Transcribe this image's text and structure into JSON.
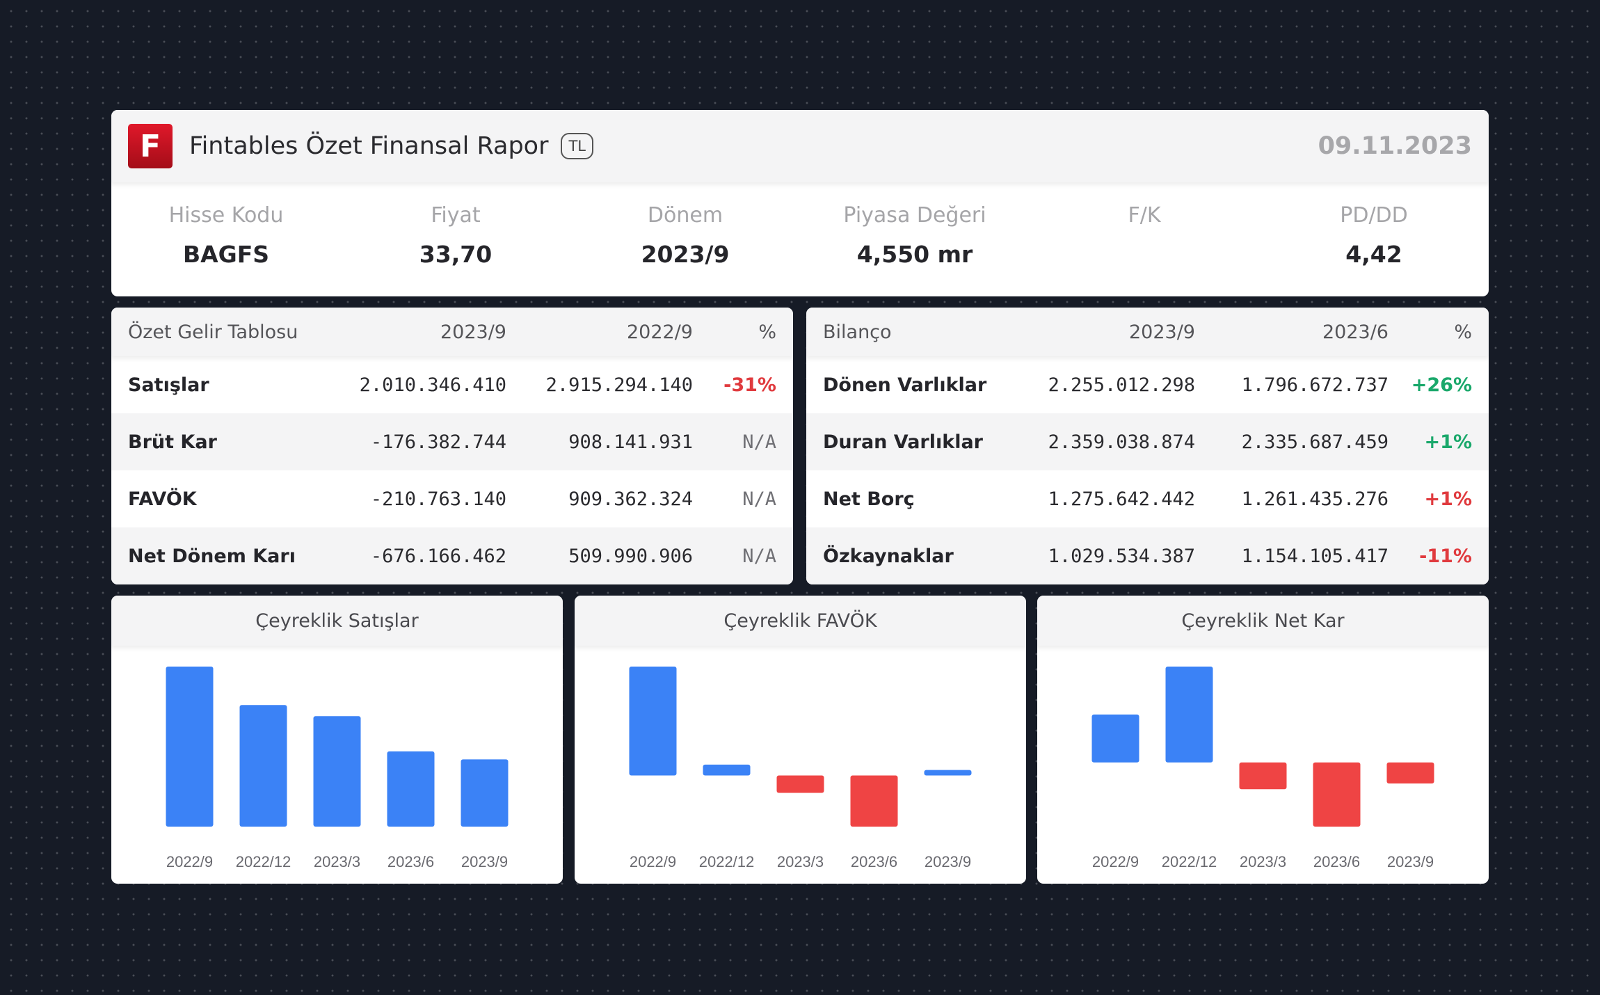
{
  "header": {
    "logo_letter": "F",
    "title": "Fintables Özet Finansal Rapor",
    "currency": "TL",
    "date": "09.11.2023"
  },
  "stats": [
    {
      "label": "Hisse Kodu",
      "value": "BAGFS"
    },
    {
      "label": "Fiyat",
      "value": "33,70"
    },
    {
      "label": "Dönem",
      "value": "2023/9"
    },
    {
      "label": "Piyasa Değeri",
      "value": "4,550 mr"
    },
    {
      "label": "F/K",
      "value": ""
    },
    {
      "label": "PD/DD",
      "value": "4,42"
    }
  ],
  "income": {
    "headers": [
      "Özet Gelir Tablosu",
      "2023/9",
      "2022/9",
      "%"
    ],
    "rows": [
      {
        "name": "Satışlar",
        "a": "2.010.346.410",
        "b": "2.915.294.140",
        "pct": "-31%",
        "tone": "neg"
      },
      {
        "name": "Brüt Kar",
        "a": "-176.382.744",
        "b": "908.141.931",
        "pct": "N/A",
        "tone": "na"
      },
      {
        "name": "FAVÖK",
        "a": "-210.763.140",
        "b": "909.362.324",
        "pct": "N/A",
        "tone": "na"
      },
      {
        "name": "Net Dönem Karı",
        "a": "-676.166.462",
        "b": "509.990.906",
        "pct": "N/A",
        "tone": "na"
      }
    ]
  },
  "balance": {
    "headers": [
      "Bilanço",
      "2023/9",
      "2023/6",
      "%"
    ],
    "rows": [
      {
        "name": "Dönen Varlıklar",
        "a": "2.255.012.298",
        "b": "1.796.672.737",
        "pct": "+26%",
        "tone": "pos"
      },
      {
        "name": "Duran Varlıklar",
        "a": "2.359.038.874",
        "b": "2.335.687.459",
        "pct": "+1%",
        "tone": "pos"
      },
      {
        "name": "Net Borç",
        "a": "1.275.642.442",
        "b": "1.261.435.276",
        "pct": "+1%",
        "tone": "neg"
      },
      {
        "name": "Özkaynaklar",
        "a": "1.029.534.387",
        "b": "1.154.105.417",
        "pct": "-11%",
        "tone": "neg"
      }
    ]
  },
  "colors": {
    "positive_bar": "#3b82f6",
    "negative_bar": "#ef4444",
    "positive_text": "#1aa86b",
    "negative_text": "#e03a3e"
  },
  "chart_data": [
    {
      "type": "bar",
      "title": "Çeyreklik Satışlar",
      "categories": [
        "2022/9",
        "2022/12",
        "2023/3",
        "2023/6",
        "2023/9"
      ],
      "values": [
        1.0,
        0.76,
        0.69,
        0.47,
        0.42
      ],
      "ylim": [
        0,
        1.0
      ]
    },
    {
      "type": "bar",
      "title": "Çeyreklik FAVÖK",
      "categories": [
        "2022/9",
        "2022/12",
        "2023/3",
        "2023/6",
        "2023/9"
      ],
      "values": [
        1.0,
        0.1,
        -0.16,
        -0.47,
        0.05
      ],
      "ylim": [
        -0.47,
        1.0
      ]
    },
    {
      "type": "bar",
      "title": "Çeyreklik Net Kar",
      "categories": [
        "2022/9",
        "2022/12",
        "2023/3",
        "2023/6",
        "2023/9"
      ],
      "values": [
        0.5,
        1.0,
        -0.28,
        -0.67,
        -0.22
      ],
      "ylim": [
        -0.67,
        1.0
      ]
    }
  ]
}
